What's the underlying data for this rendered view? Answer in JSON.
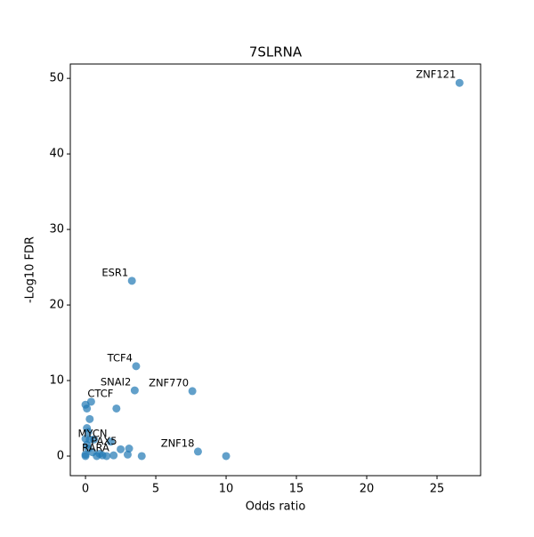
{
  "chart_data": {
    "type": "scatter",
    "title": "7SLRNA",
    "x_label": "Odds ratio",
    "y_label": "-Log10 FDR",
    "color": "#1f77b4",
    "x": [
      26.6,
      3.3,
      3.6,
      3.5,
      7.6,
      0.4,
      0.0,
      0.1,
      2.2,
      0.3,
      0.1,
      0.2,
      0.0,
      0.3,
      0.6,
      1.8,
      2.5,
      8.0,
      10.0,
      3.1,
      3.0,
      4.0,
      2.0,
      1.5,
      1.0,
      0.5,
      0.2,
      0.0,
      0.1,
      1.2,
      0.8,
      0.0
    ],
    "values": [
      49.4,
      23.2,
      11.9,
      8.7,
      8.6,
      7.2,
      6.8,
      6.3,
      6.3,
      4.9,
      3.7,
      3.2,
      2.3,
      2.2,
      2.2,
      1.9,
      0.9,
      0.6,
      0.0,
      1.0,
      0.2,
      0.0,
      0.1,
      0.0,
      0.3,
      0.5,
      1.0,
      0.2,
      1.5,
      0.1,
      0.0,
      0.0
    ],
    "annotations": [
      {
        "text": "ZNF121",
        "x": 26.6,
        "y": 49.4
      },
      {
        "text": "ESR1",
        "x": 3.3,
        "y": 23.2
      },
      {
        "text": "TCF4",
        "x": 3.6,
        "y": 11.9
      },
      {
        "text": "SNAI2",
        "x": 3.5,
        "y": 8.7
      },
      {
        "text": "ZNF770",
        "x": 7.6,
        "y": 8.6
      },
      {
        "text": "CTCF",
        "x": 0.4,
        "y": 7.2
      },
      {
        "text": "MYCN",
        "x": 1.8,
        "y": 1.9
      },
      {
        "text": "PAX5",
        "x": 2.5,
        "y": 0.9
      },
      {
        "text": "ZNF18",
        "x": 8.0,
        "y": 0.6
      },
      {
        "text": "RARA",
        "x": 0.0,
        "y": 0.0
      }
    ],
    "xlim": [
      -1.08,
      28.1
    ],
    "ylim": [
      -2.59,
      51.9
    ],
    "xticks": [
      0,
      5,
      10,
      15,
      20,
      25
    ],
    "yticks": [
      0,
      10,
      20,
      30,
      40,
      50
    ]
  }
}
